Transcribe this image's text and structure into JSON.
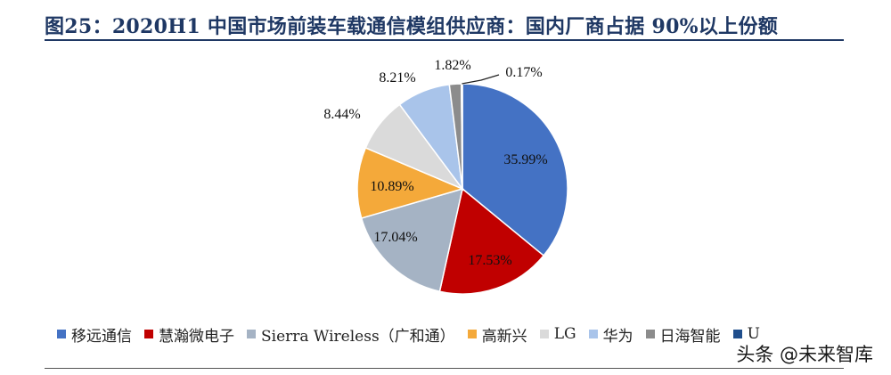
{
  "title": "图25：2020H1 中国市场前装车载通信模组供应商：国内厂商占据 90%以上份额",
  "watermark": "头条 @未来智库",
  "chart_data": {
    "type": "pie",
    "title": "",
    "series": [
      {
        "name": "移远通信",
        "value": 35.99,
        "label": "35.99%",
        "color": "#4472c4"
      },
      {
        "name": "慧瀚微电子",
        "value": 17.53,
        "label": "17.53%",
        "color": "#c00000"
      },
      {
        "name": "Sierra Wireless（广和通）",
        "value": 17.04,
        "label": "17.04%",
        "color": "#a5b3c4"
      },
      {
        "name": "高新兴",
        "value": 10.89,
        "label": "10.89%",
        "color": "#f4a93a"
      },
      {
        "name": "LG",
        "value": 8.44,
        "label": "8.44%",
        "color": "#dadada"
      },
      {
        "name": "华为",
        "value": 8.21,
        "label": "8.21%",
        "color": "#a9c4ea"
      },
      {
        "name": "日海智能",
        "value": 1.82,
        "label": "1.82%",
        "color": "#8c8c8c"
      },
      {
        "name": "U",
        "value": 0.17,
        "label": "0.17%",
        "color": "#1f4e8c"
      }
    ],
    "legend_position": "bottom"
  }
}
